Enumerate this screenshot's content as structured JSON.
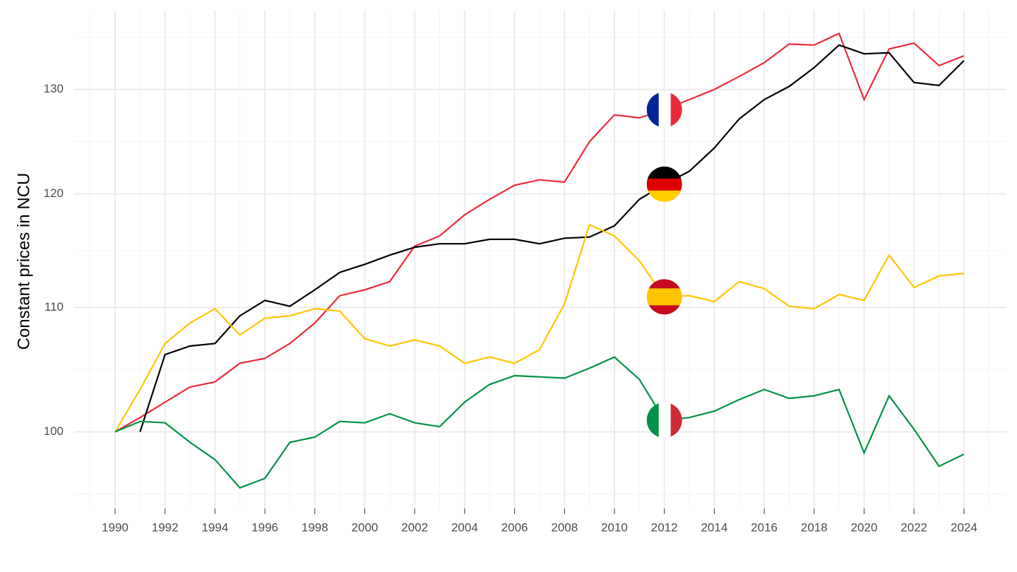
{
  "chart_data": {
    "type": "line",
    "y_label": "Constant prices in NCU",
    "y_log": true,
    "grid": true,
    "x": [
      1990,
      1991,
      1992,
      1993,
      1994,
      1995,
      1996,
      1997,
      1998,
      1999,
      2000,
      2001,
      2002,
      2003,
      2004,
      2005,
      2006,
      2007,
      2008,
      2009,
      2010,
      2011,
      2012,
      2013,
      2014,
      2015,
      2016,
      2017,
      2018,
      2019,
      2020,
      2021,
      2022,
      2023,
      2024
    ],
    "xlim": [
      1988.36,
      2025.7
    ],
    "xticks": [
      1990,
      1992,
      1994,
      1996,
      1998,
      2000,
      2002,
      2004,
      2006,
      2008,
      2010,
      2012,
      2014,
      2016,
      2018,
      2020,
      2022,
      2024
    ],
    "ylim": [
      94.3,
      138.1
    ],
    "yticks": [
      100,
      110,
      120,
      130
    ],
    "series": [
      {
        "color": "#ed2939",
        "values": [
          100,
          101.1,
          102.3,
          103.5,
          103.9,
          105.4,
          105.8,
          107.0,
          108.7,
          111.0,
          111.5,
          112.2,
          115.3,
          116.2,
          118.1,
          119.5,
          120.8,
          121.3,
          121.1,
          124.9,
          127.5,
          127.2,
          128.0,
          129.0,
          130.0,
          131.3,
          132.7,
          134.6,
          134.5,
          135.7,
          129.0,
          134.1,
          134.7,
          132.4,
          133.4
        ]
      },
      {
        "color": "#000000",
        "values": [
          null,
          100,
          106.1,
          106.8,
          107.0,
          109.3,
          110.6,
          110.1,
          111.5,
          113.0,
          113.7,
          114.5,
          115.2,
          115.5,
          115.5,
          115.9,
          115.9,
          115.5,
          116.0,
          116.1,
          117.1,
          119.5,
          120.9,
          122.1,
          124.3,
          127.1,
          129.0,
          130.3,
          132.2,
          134.5,
          133.6,
          133.7,
          130.7,
          130.4,
          132.9
        ]
      },
      {
        "color": "#ffc400",
        "values": [
          100,
          103.3,
          107.0,
          108.7,
          109.9,
          107.7,
          109.1,
          109.3,
          109.9,
          109.7,
          107.4,
          106.8,
          107.3,
          106.8,
          105.4,
          105.9,
          105.4,
          106.5,
          110.3,
          117.2,
          116.2,
          114.0,
          110.9,
          111.0,
          110.5,
          112.2,
          111.6,
          110.1,
          109.9,
          111.1,
          110.6,
          114.5,
          111.7,
          112.7,
          112.9
        ]
      },
      {
        "color": "#009246",
        "values": [
          100,
          100.8,
          100.7,
          99.2,
          97.9,
          95.8,
          96.5,
          99.2,
          99.6,
          100.8,
          100.7,
          101.4,
          100.7,
          100.4,
          102.3,
          103.7,
          104.4,
          104.3,
          104.2,
          105.0,
          105.9,
          104.1,
          100.9,
          101.1,
          101.6,
          102.5,
          103.3,
          102.6,
          102.8,
          103.3,
          98.4,
          102.8,
          100.2,
          97.4,
          98.3
        ]
      }
    ]
  }
}
